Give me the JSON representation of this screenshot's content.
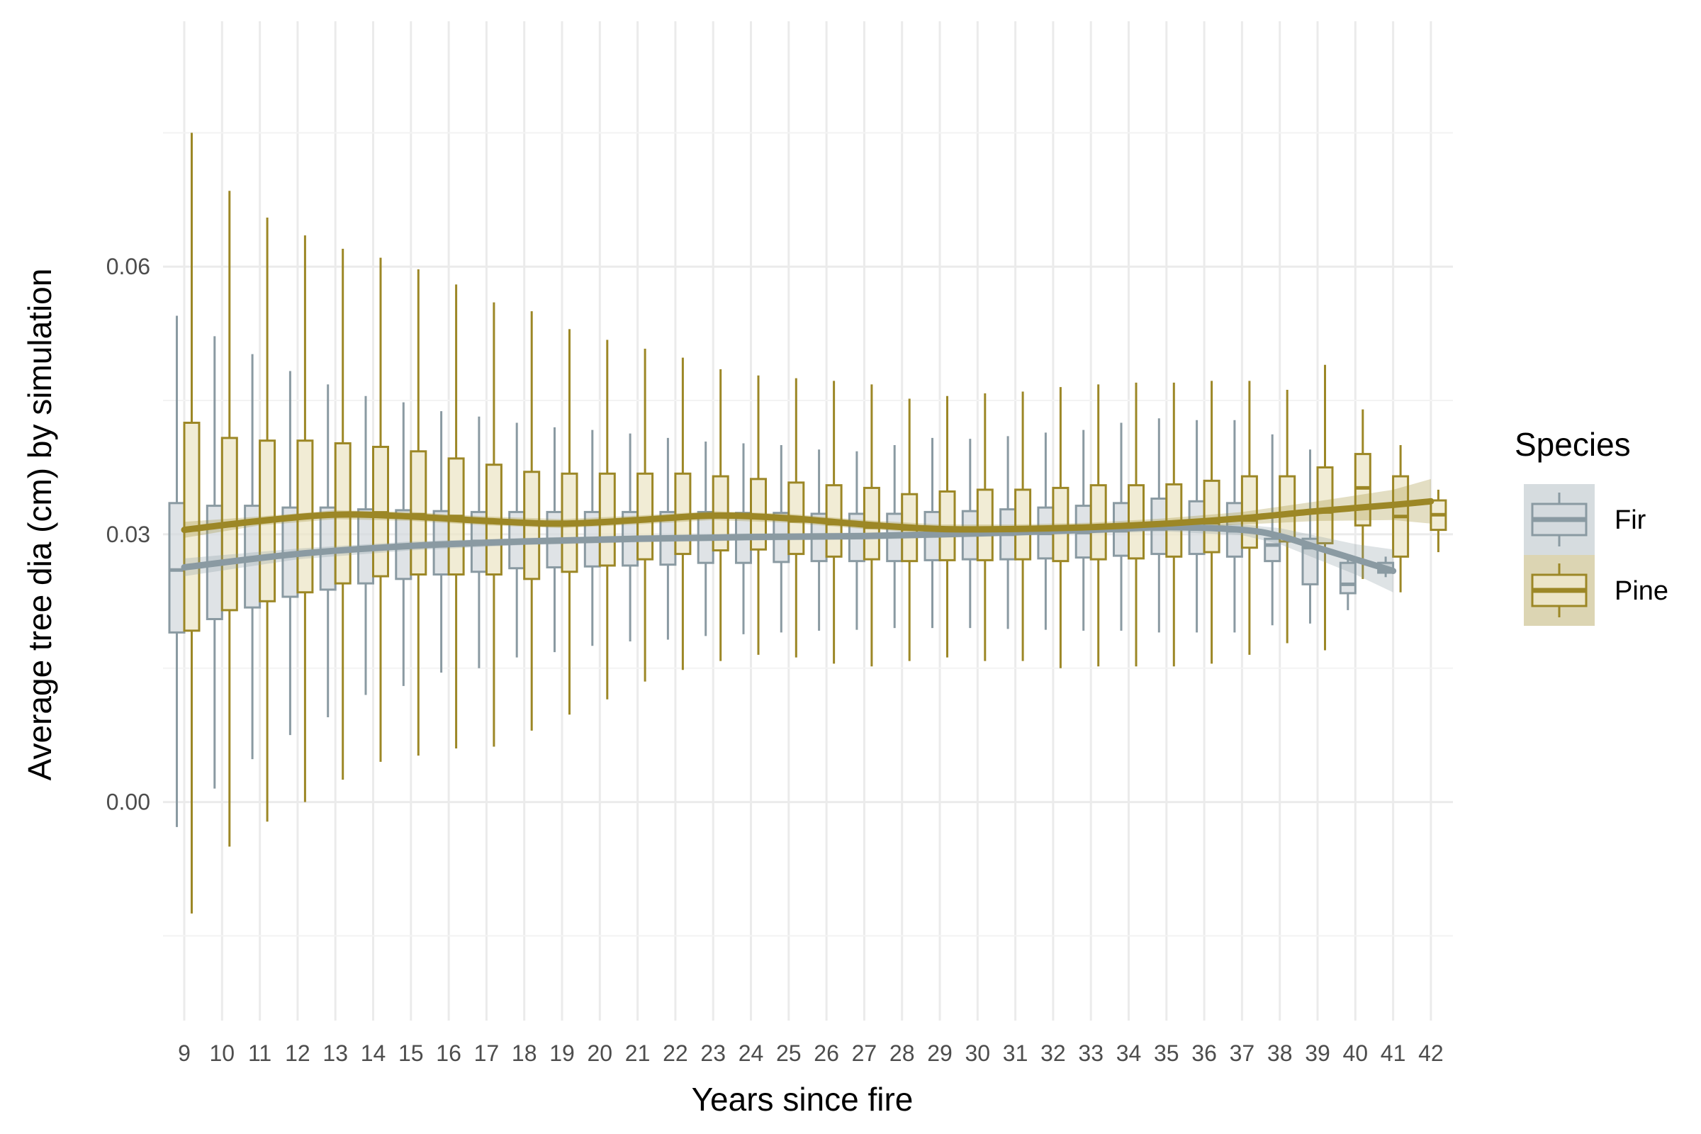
{
  "chart_data": {
    "type": "boxplot",
    "title": "",
    "xlabel": "Years since fire",
    "ylabel": "Average tree dia (cm) by simulation",
    "x_categories": [
      9,
      10,
      11,
      12,
      13,
      14,
      15,
      16,
      17,
      18,
      19,
      20,
      21,
      22,
      23,
      24,
      25,
      26,
      27,
      28,
      29,
      30,
      31,
      32,
      33,
      34,
      35,
      36,
      37,
      38,
      39,
      40,
      41,
      42
    ],
    "y_ticks": [
      0.0,
      0.03,
      0.06
    ],
    "y_tick_labels": [
      "0.00",
      "0.03",
      "0.06"
    ],
    "ylim": [
      -0.0245,
      0.0875
    ],
    "grid": true,
    "legend": {
      "title": "Species",
      "position": "right"
    },
    "series": [
      {
        "name": "Fir",
        "color": "#8a9aa2",
        "fill": "#d4dade",
        "boxes": [
          {
            "x": 9,
            "lower": -0.0028,
            "q1": 0.019,
            "median": 0.026,
            "q3": 0.0335,
            "upper": 0.0545
          },
          {
            "x": 10,
            "lower": 0.0015,
            "q1": 0.0205,
            "median": 0.0268,
            "q3": 0.0332,
            "upper": 0.0522
          },
          {
            "x": 11,
            "lower": 0.0048,
            "q1": 0.0218,
            "median": 0.0272,
            "q3": 0.0332,
            "upper": 0.0502
          },
          {
            "x": 12,
            "lower": 0.0075,
            "q1": 0.023,
            "median": 0.0278,
            "q3": 0.033,
            "upper": 0.0483
          },
          {
            "x": 13,
            "lower": 0.0095,
            "q1": 0.0238,
            "median": 0.0282,
            "q3": 0.033,
            "upper": 0.0468
          },
          {
            "x": 14,
            "lower": 0.012,
            "q1": 0.0245,
            "median": 0.0285,
            "q3": 0.0328,
            "upper": 0.0455
          },
          {
            "x": 15,
            "lower": 0.013,
            "q1": 0.025,
            "median": 0.0287,
            "q3": 0.0327,
            "upper": 0.0448
          },
          {
            "x": 16,
            "lower": 0.0145,
            "q1": 0.0255,
            "median": 0.029,
            "q3": 0.0326,
            "upper": 0.0438
          },
          {
            "x": 17,
            "lower": 0.015,
            "q1": 0.0258,
            "median": 0.0292,
            "q3": 0.0325,
            "upper": 0.0432
          },
          {
            "x": 18,
            "lower": 0.0162,
            "q1": 0.0262,
            "median": 0.0293,
            "q3": 0.0325,
            "upper": 0.0425
          },
          {
            "x": 19,
            "lower": 0.0168,
            "q1": 0.0263,
            "median": 0.0294,
            "q3": 0.0325,
            "upper": 0.042
          },
          {
            "x": 20,
            "lower": 0.0175,
            "q1": 0.0264,
            "median": 0.0295,
            "q3": 0.0325,
            "upper": 0.0417
          },
          {
            "x": 21,
            "lower": 0.018,
            "q1": 0.0265,
            "median": 0.0296,
            "q3": 0.0325,
            "upper": 0.0413
          },
          {
            "x": 22,
            "lower": 0.0182,
            "q1": 0.0266,
            "median": 0.0296,
            "q3": 0.0325,
            "upper": 0.0408
          },
          {
            "x": 23,
            "lower": 0.0186,
            "q1": 0.0268,
            "median": 0.0297,
            "q3": 0.0325,
            "upper": 0.0404
          },
          {
            "x": 24,
            "lower": 0.0188,
            "q1": 0.0268,
            "median": 0.0297,
            "q3": 0.0324,
            "upper": 0.0402
          },
          {
            "x": 25,
            "lower": 0.019,
            "q1": 0.0269,
            "median": 0.0298,
            "q3": 0.0324,
            "upper": 0.04
          },
          {
            "x": 26,
            "lower": 0.0192,
            "q1": 0.027,
            "median": 0.0298,
            "q3": 0.0323,
            "upper": 0.0395
          },
          {
            "x": 27,
            "lower": 0.0193,
            "q1": 0.027,
            "median": 0.0298,
            "q3": 0.0323,
            "upper": 0.0393
          },
          {
            "x": 28,
            "lower": 0.0195,
            "q1": 0.027,
            "median": 0.0298,
            "q3": 0.0323,
            "upper": 0.04
          },
          {
            "x": 29,
            "lower": 0.0195,
            "q1": 0.0271,
            "median": 0.0299,
            "q3": 0.0325,
            "upper": 0.0408
          },
          {
            "x": 30,
            "lower": 0.0195,
            "q1": 0.0272,
            "median": 0.03,
            "q3": 0.0326,
            "upper": 0.0407
          },
          {
            "x": 31,
            "lower": 0.0194,
            "q1": 0.0272,
            "median": 0.03,
            "q3": 0.0328,
            "upper": 0.041
          },
          {
            "x": 32,
            "lower": 0.0193,
            "q1": 0.0273,
            "median": 0.0301,
            "q3": 0.033,
            "upper": 0.0414
          },
          {
            "x": 33,
            "lower": 0.0192,
            "q1": 0.0274,
            "median": 0.0302,
            "q3": 0.0332,
            "upper": 0.0417
          },
          {
            "x": 34,
            "lower": 0.0192,
            "q1": 0.0276,
            "median": 0.0304,
            "q3": 0.0335,
            "upper": 0.0425
          },
          {
            "x": 35,
            "lower": 0.019,
            "q1": 0.0278,
            "median": 0.0306,
            "q3": 0.034,
            "upper": 0.043
          },
          {
            "x": 36,
            "lower": 0.019,
            "q1": 0.0278,
            "median": 0.0306,
            "q3": 0.0337,
            "upper": 0.0428
          },
          {
            "x": 37,
            "lower": 0.019,
            "q1": 0.0275,
            "median": 0.0304,
            "q3": 0.0335,
            "upper": 0.0428
          },
          {
            "x": 38,
            "lower": 0.0198,
            "q1": 0.027,
            "median": 0.0288,
            "q3": 0.0295,
            "upper": 0.0412
          },
          {
            "x": 39,
            "lower": 0.02,
            "q1": 0.0244,
            "median": 0.0285,
            "q3": 0.0295,
            "upper": 0.0395
          },
          {
            "x": 40,
            "lower": 0.0215,
            "q1": 0.0234,
            "median": 0.0244,
            "q3": 0.0268,
            "upper": 0.0275
          },
          {
            "x": 41,
            "lower": 0.0252,
            "q1": 0.0257,
            "median": 0.026,
            "q3": 0.0268,
            "upper": 0.0275
          }
        ],
        "smooth": [
          {
            "x": 9,
            "y": 0.0263
          },
          {
            "x": 12,
            "y": 0.0278
          },
          {
            "x": 15,
            "y": 0.0287
          },
          {
            "x": 18,
            "y": 0.0292
          },
          {
            "x": 21,
            "y": 0.0295
          },
          {
            "x": 24,
            "y": 0.0297
          },
          {
            "x": 27,
            "y": 0.0298
          },
          {
            "x": 30,
            "y": 0.0301
          },
          {
            "x": 33,
            "y": 0.0305
          },
          {
            "x": 35,
            "y": 0.0308
          },
          {
            "x": 37,
            "y": 0.0305
          },
          {
            "x": 38,
            "y": 0.0298
          },
          {
            "x": 39,
            "y": 0.0285
          },
          {
            "x": 40,
            "y": 0.0272
          },
          {
            "x": 41,
            "y": 0.0259
          }
        ],
        "smooth_band": [
          {
            "x": 9,
            "lo": 0.0253,
            "hi": 0.0273
          },
          {
            "x": 12,
            "lo": 0.0272,
            "hi": 0.0284
          },
          {
            "x": 15,
            "lo": 0.0282,
            "hi": 0.0292
          },
          {
            "x": 18,
            "lo": 0.0288,
            "hi": 0.0296
          },
          {
            "x": 21,
            "lo": 0.0291,
            "hi": 0.0299
          },
          {
            "x": 24,
            "lo": 0.0293,
            "hi": 0.0301
          },
          {
            "x": 27,
            "lo": 0.0294,
            "hi": 0.0302
          },
          {
            "x": 30,
            "lo": 0.0297,
            "hi": 0.0305
          },
          {
            "x": 33,
            "lo": 0.0301,
            "hi": 0.0309
          },
          {
            "x": 35,
            "lo": 0.0303,
            "hi": 0.0313
          },
          {
            "x": 37,
            "lo": 0.0299,
            "hi": 0.0311
          },
          {
            "x": 38,
            "lo": 0.0289,
            "hi": 0.0307
          },
          {
            "x": 39,
            "lo": 0.0272,
            "hi": 0.0298
          },
          {
            "x": 40,
            "lo": 0.0255,
            "hi": 0.0289
          },
          {
            "x": 41,
            "lo": 0.0235,
            "hi": 0.0283
          }
        ]
      },
      {
        "name": "Pine",
        "color": "#9c8726",
        "fill": "#ece5c7",
        "boxes": [
          {
            "x": 9,
            "lower": -0.0125,
            "q1": 0.0192,
            "median": 0.0305,
            "q3": 0.0425,
            "upper": 0.075
          },
          {
            "x": 10,
            "lower": -0.005,
            "q1": 0.0215,
            "median": 0.031,
            "q3": 0.0408,
            "upper": 0.0685
          },
          {
            "x": 11,
            "lower": -0.0022,
            "q1": 0.0225,
            "median": 0.0315,
            "q3": 0.0405,
            "upper": 0.0655
          },
          {
            "x": 12,
            "lower": 0.0,
            "q1": 0.0235,
            "median": 0.032,
            "q3": 0.0405,
            "upper": 0.0635
          },
          {
            "x": 13,
            "lower": 0.0025,
            "q1": 0.0245,
            "median": 0.0322,
            "q3": 0.0402,
            "upper": 0.062
          },
          {
            "x": 14,
            "lower": 0.0045,
            "q1": 0.0253,
            "median": 0.0324,
            "q3": 0.0398,
            "upper": 0.061
          },
          {
            "x": 15,
            "lower": 0.0052,
            "q1": 0.0255,
            "median": 0.0322,
            "q3": 0.0393,
            "upper": 0.0597
          },
          {
            "x": 16,
            "lower": 0.006,
            "q1": 0.0255,
            "median": 0.032,
            "q3": 0.0385,
            "upper": 0.058
          },
          {
            "x": 17,
            "lower": 0.0062,
            "q1": 0.0255,
            "median": 0.0315,
            "q3": 0.0378,
            "upper": 0.056
          },
          {
            "x": 18,
            "lower": 0.008,
            "q1": 0.025,
            "median": 0.0312,
            "q3": 0.037,
            "upper": 0.055
          },
          {
            "x": 19,
            "lower": 0.0098,
            "q1": 0.0258,
            "median": 0.0311,
            "q3": 0.0368,
            "upper": 0.053
          },
          {
            "x": 20,
            "lower": 0.0115,
            "q1": 0.0265,
            "median": 0.0314,
            "q3": 0.0368,
            "upper": 0.0518
          },
          {
            "x": 21,
            "lower": 0.0135,
            "q1": 0.0272,
            "median": 0.0316,
            "q3": 0.0368,
            "upper": 0.0508
          },
          {
            "x": 22,
            "lower": 0.0148,
            "q1": 0.0278,
            "median": 0.032,
            "q3": 0.0368,
            "upper": 0.0498
          },
          {
            "x": 23,
            "lower": 0.0158,
            "q1": 0.0282,
            "median": 0.0322,
            "q3": 0.0365,
            "upper": 0.0485
          },
          {
            "x": 24,
            "lower": 0.0165,
            "q1": 0.0283,
            "median": 0.032,
            "q3": 0.0362,
            "upper": 0.0478
          },
          {
            "x": 25,
            "lower": 0.0162,
            "q1": 0.0278,
            "median": 0.0315,
            "q3": 0.0358,
            "upper": 0.0475
          },
          {
            "x": 26,
            "lower": 0.0155,
            "q1": 0.0275,
            "median": 0.0312,
            "q3": 0.0355,
            "upper": 0.0472
          },
          {
            "x": 27,
            "lower": 0.0152,
            "q1": 0.0272,
            "median": 0.0308,
            "q3": 0.0352,
            "upper": 0.0468
          },
          {
            "x": 28,
            "lower": 0.0158,
            "q1": 0.027,
            "median": 0.0306,
            "q3": 0.0345,
            "upper": 0.0452
          },
          {
            "x": 29,
            "lower": 0.0162,
            "q1": 0.0271,
            "median": 0.0305,
            "q3": 0.0348,
            "upper": 0.0455
          },
          {
            "x": 30,
            "lower": 0.0158,
            "q1": 0.0271,
            "median": 0.0305,
            "q3": 0.035,
            "upper": 0.0458
          },
          {
            "x": 31,
            "lower": 0.0158,
            "q1": 0.0272,
            "median": 0.0305,
            "q3": 0.035,
            "upper": 0.046
          },
          {
            "x": 32,
            "lower": 0.015,
            "q1": 0.027,
            "median": 0.0305,
            "q3": 0.0352,
            "upper": 0.0465
          },
          {
            "x": 33,
            "lower": 0.0152,
            "q1": 0.0272,
            "median": 0.0306,
            "q3": 0.0355,
            "upper": 0.0468
          },
          {
            "x": 34,
            "lower": 0.0152,
            "q1": 0.0273,
            "median": 0.0308,
            "q3": 0.0355,
            "upper": 0.047
          },
          {
            "x": 35,
            "lower": 0.0152,
            "q1": 0.0275,
            "median": 0.031,
            "q3": 0.0356,
            "upper": 0.047
          },
          {
            "x": 36,
            "lower": 0.0155,
            "q1": 0.028,
            "median": 0.0313,
            "q3": 0.036,
            "upper": 0.0472
          },
          {
            "x": 37,
            "lower": 0.0165,
            "q1": 0.0285,
            "median": 0.0316,
            "q3": 0.0365,
            "upper": 0.0472
          },
          {
            "x": 38,
            "lower": 0.0178,
            "q1": 0.0292,
            "median": 0.0322,
            "q3": 0.0365,
            "upper": 0.0462
          },
          {
            "x": 39,
            "lower": 0.017,
            "q1": 0.029,
            "median": 0.0325,
            "q3": 0.0375,
            "upper": 0.049
          },
          {
            "x": 40,
            "lower": 0.025,
            "q1": 0.031,
            "median": 0.0352,
            "q3": 0.039,
            "upper": 0.044
          },
          {
            "x": 41,
            "lower": 0.0235,
            "q1": 0.0275,
            "median": 0.032,
            "q3": 0.0365,
            "upper": 0.04
          },
          {
            "x": 42,
            "lower": 0.028,
            "q1": 0.0305,
            "median": 0.0322,
            "q3": 0.0338,
            "upper": 0.035
          }
        ],
        "smooth": [
          {
            "x": 9,
            "y": 0.0305
          },
          {
            "x": 11,
            "y": 0.0315
          },
          {
            "x": 13,
            "y": 0.0322
          },
          {
            "x": 15,
            "y": 0.032
          },
          {
            "x": 17,
            "y": 0.0315
          },
          {
            "x": 19,
            "y": 0.0312
          },
          {
            "x": 21,
            "y": 0.0316
          },
          {
            "x": 23,
            "y": 0.0321
          },
          {
            "x": 25,
            "y": 0.0318
          },
          {
            "x": 27,
            "y": 0.0311
          },
          {
            "x": 29,
            "y": 0.0306
          },
          {
            "x": 31,
            "y": 0.0306
          },
          {
            "x": 33,
            "y": 0.0308
          },
          {
            "x": 35,
            "y": 0.0312
          },
          {
            "x": 37,
            "y": 0.0318
          },
          {
            "x": 39,
            "y": 0.0326
          },
          {
            "x": 41,
            "y": 0.0333
          },
          {
            "x": 42,
            "y": 0.0337
          }
        ],
        "smooth_band": [
          {
            "x": 9,
            "lo": 0.0296,
            "hi": 0.0314
          },
          {
            "x": 11,
            "lo": 0.031,
            "hi": 0.032
          },
          {
            "x": 13,
            "lo": 0.0317,
            "hi": 0.0327
          },
          {
            "x": 15,
            "lo": 0.0315,
            "hi": 0.0325
          },
          {
            "x": 17,
            "lo": 0.031,
            "hi": 0.032
          },
          {
            "x": 19,
            "lo": 0.0307,
            "hi": 0.0317
          },
          {
            "x": 21,
            "lo": 0.0311,
            "hi": 0.0321
          },
          {
            "x": 23,
            "lo": 0.0316,
            "hi": 0.0326
          },
          {
            "x": 25,
            "lo": 0.0313,
            "hi": 0.0323
          },
          {
            "x": 27,
            "lo": 0.0306,
            "hi": 0.0316
          },
          {
            "x": 29,
            "lo": 0.0301,
            "hi": 0.0311
          },
          {
            "x": 31,
            "lo": 0.0301,
            "hi": 0.0311
          },
          {
            "x": 33,
            "lo": 0.0303,
            "hi": 0.0313
          },
          {
            "x": 35,
            "lo": 0.0306,
            "hi": 0.0318
          },
          {
            "x": 37,
            "lo": 0.0311,
            "hi": 0.0325
          },
          {
            "x": 39,
            "lo": 0.0315,
            "hi": 0.0337
          },
          {
            "x": 41,
            "lo": 0.0316,
            "hi": 0.035
          },
          {
            "x": 42,
            "lo": 0.0312,
            "hi": 0.0362
          }
        ]
      }
    ]
  }
}
